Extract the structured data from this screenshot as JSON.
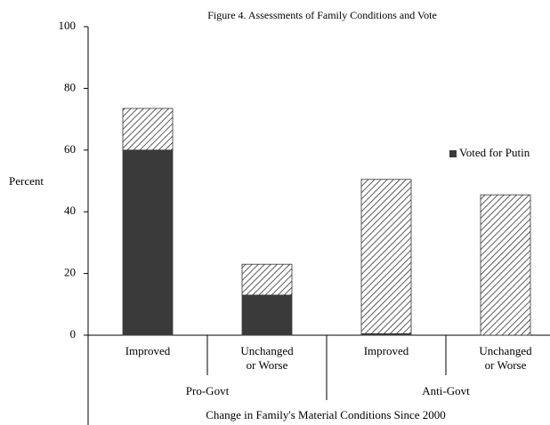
{
  "chart_data": {
    "type": "stacked_bar",
    "title": "Figure 4.  Assessments of Family Conditions and Vote",
    "y_label": "Percent",
    "x_label": "Change in Family's Material Conditions Since 2000",
    "categories": [
      [
        "Improved"
      ],
      [
        "Unchanged",
        "or Worse"
      ],
      [
        "Improved"
      ],
      [
        "Unchanged",
        "or Worse"
      ]
    ],
    "groups": [
      "Pro-Govt",
      "Anti-Govt"
    ],
    "series": [
      {
        "name": "Voted for Putin",
        "color": "#3a3a3a",
        "values": [
          60,
          13,
          0.5,
          0
        ]
      },
      {
        "color": "#333333",
        "hatch": true,
        "values": [
          13.5,
          10,
          50,
          45.5
        ]
      }
    ],
    "ylim": [
      0,
      100
    ],
    "yticks": [
      0,
      20,
      40,
      60,
      80,
      100
    ],
    "legend": "right"
  }
}
